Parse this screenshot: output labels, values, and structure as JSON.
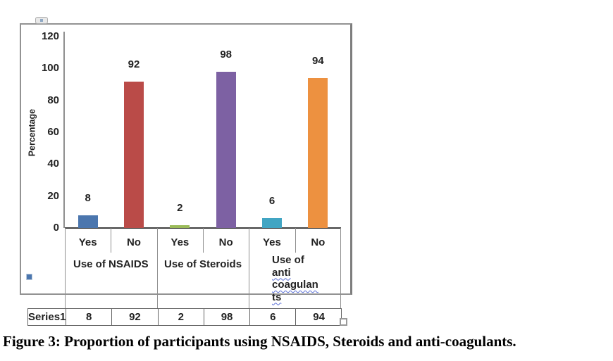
{
  "figure": {
    "caption": "Figure 3: Proportion of participants using NSAIDS, Steroids and anti-coagulants."
  },
  "chart_data": {
    "type": "bar",
    "title": "",
    "ylabel": "Percentage",
    "xlabel": "",
    "ylim": [
      0,
      120
    ],
    "yticks": [
      0,
      20,
      40,
      60,
      80,
      100,
      120
    ],
    "grid": false,
    "legend_position": "none",
    "categories": [
      "Yes",
      "No",
      "Yes",
      "No",
      "Yes",
      "No"
    ],
    "values": [
      8,
      92,
      2,
      98,
      6,
      94
    ],
    "data_labels": [
      8,
      92,
      2,
      98,
      6,
      94
    ],
    "series": [
      {
        "name": "Series1",
        "values": [
          8,
          92,
          2,
          98,
          6,
          94
        ]
      }
    ],
    "groups": [
      {
        "label": "Use of NSAIDS",
        "categories": [
          "Yes",
          "No"
        ],
        "values": [
          8,
          92
        ]
      },
      {
        "label": "Use of Steroids",
        "categories": [
          "Yes",
          "No"
        ],
        "values": [
          2,
          98
        ]
      },
      {
        "label": "Use of anti coagulants",
        "categories": [
          "Yes",
          "No"
        ],
        "values": [
          6,
          94
        ]
      }
    ],
    "anti_label_lines": [
      {
        "text": "Use of",
        "misspelled": false
      },
      {
        "text": "anti",
        "misspelled": true
      },
      {
        "text": "coagulan",
        "misspelled": true
      },
      {
        "text": "ts",
        "misspelled": true
      }
    ],
    "bar_colors": [
      "#4B76AE",
      "#BA4B48",
      "#9BBB59",
      "#7D61A3",
      "#41A5C3",
      "#ED9140"
    ],
    "data_table": {
      "row_header": "Series1",
      "values": [
        8,
        92,
        2,
        98,
        6,
        94
      ]
    },
    "legend_key_color": "#4B76AE",
    "squiggle_color": "#5a6fd6"
  }
}
